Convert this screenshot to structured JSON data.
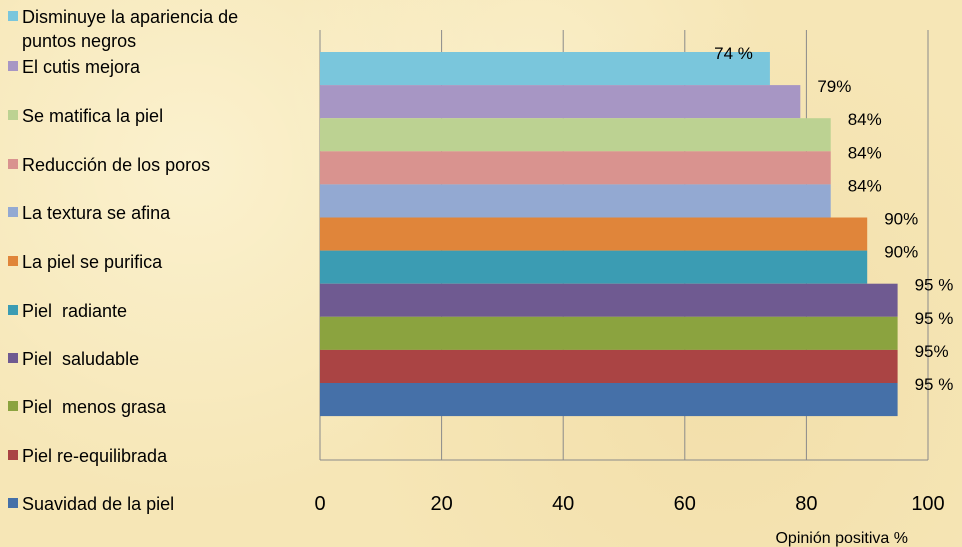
{
  "chart_data": {
    "type": "bar",
    "orientation": "horizontal",
    "title": "",
    "xlabel": "Opinión positiva %",
    "ylabel": "",
    "xlim": [
      0,
      100
    ],
    "xticks": [
      "0",
      "20",
      "40",
      "60",
      "80",
      "100"
    ],
    "grid": "vertical",
    "legend_placement": "left",
    "series": [
      {
        "name": "Disminuye la apariencia de puntos negros",
        "value": 74,
        "label": "74 %",
        "color": "#7ac6dc"
      },
      {
        "name": "El cutis mejora",
        "value": 79,
        "label": "79%",
        "color": "#a796c4"
      },
      {
        "name": "Se matifica la piel",
        "value": 84,
        "label": "84%",
        "color": "#bcd292"
      },
      {
        "name": "Reducción de los poros",
        "value": 84,
        "label": "84%",
        "color": "#d9938f"
      },
      {
        "name": "La textura se afina",
        "value": 84,
        "label": "84%",
        "color": "#93a9d2"
      },
      {
        "name": "La piel se purifica",
        "value": 90,
        "label": "90%",
        "color": "#e0853a"
      },
      {
        "name": "Piel  radiante",
        "value": 90,
        "label": "90%",
        "color": "#3b9cb3"
      },
      {
        "name": "Piel  saludable",
        "value": 95,
        "label": "95 %",
        "color": "#6f5a91"
      },
      {
        "name": "Piel  menos grasa",
        "value": 95,
        "label": "95 %",
        "color": "#8ba33f"
      },
      {
        "name": "Piel re-equilibrada",
        "value": 95,
        "label": "95%",
        "color": "#aa4444"
      },
      {
        "name": "Suavidad de la piel",
        "value": 95,
        "label": "95 %",
        "color": "#4570a8"
      }
    ]
  }
}
